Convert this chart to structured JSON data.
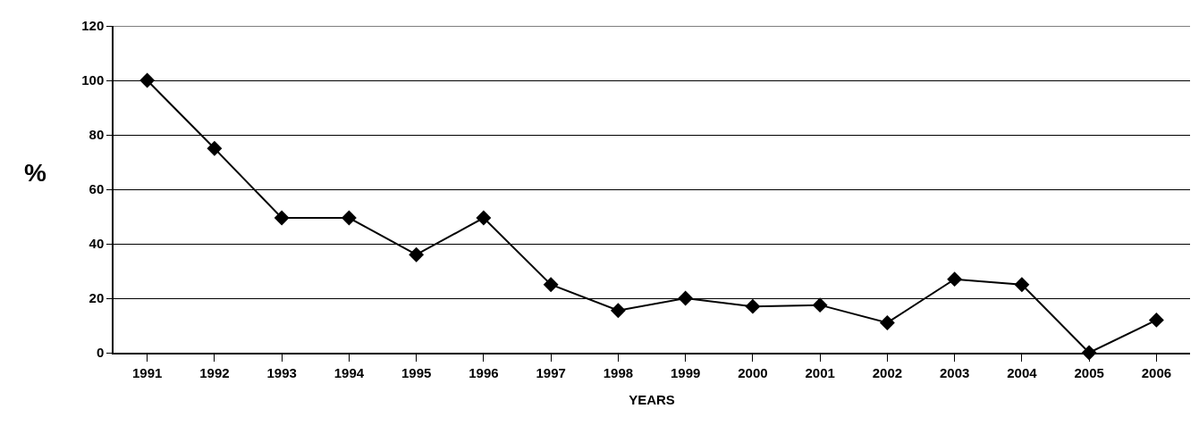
{
  "chart_data": {
    "type": "line",
    "xlabel": "YEARS",
    "ylabel": "%",
    "categories": [
      "1991",
      "1992",
      "1993",
      "1994",
      "1995",
      "1996",
      "1997",
      "1998",
      "1999",
      "2000",
      "2001",
      "2002",
      "2003",
      "2004",
      "2005",
      "2006"
    ],
    "series": [
      {
        "color": "#000000",
        "values": [
          100,
          75,
          49.5,
          49.5,
          36,
          49.5,
          25,
          15.5,
          20,
          17,
          17.5,
          11,
          27,
          25,
          0,
          12
        ]
      }
    ],
    "ylim": [
      0,
      120
    ],
    "yticks": [
      0,
      20,
      40,
      60,
      80,
      100,
      120
    ],
    "grid": "y",
    "marker": "diamond",
    "line_style": "solid"
  }
}
